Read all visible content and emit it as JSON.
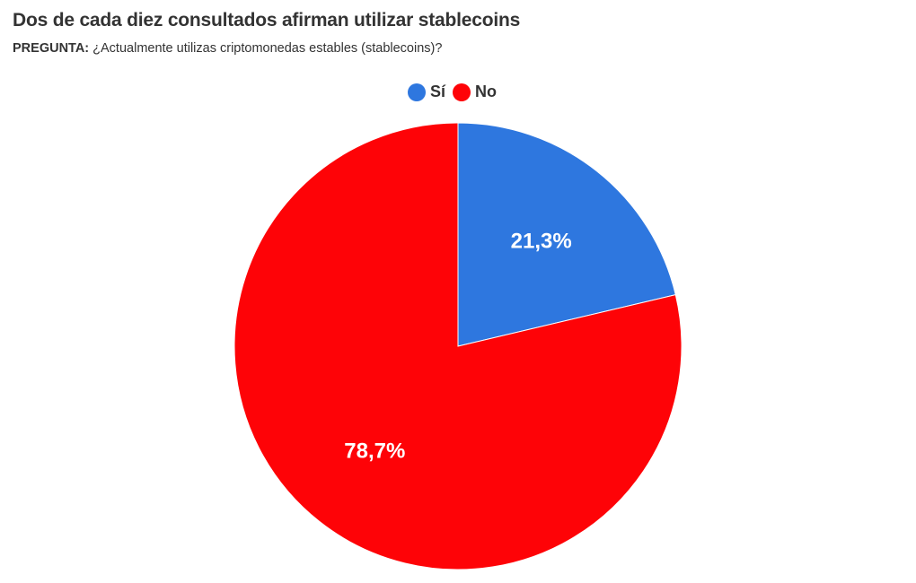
{
  "title": "Dos de cada diez consultados afirman utilizar stablecoins",
  "subtitle": {
    "prefix": "PREGUNTA:",
    "text": "¿Actualmente utilizas criptomonedas estables (stablecoins)?"
  },
  "chart_data": {
    "type": "pie",
    "slices": [
      {
        "label": "Sí",
        "value": 21.3,
        "display": "21,3%",
        "color": "#2e77df"
      },
      {
        "label": "No",
        "value": 78.7,
        "display": "78,7%",
        "color": "#fe0307"
      }
    ],
    "legend_position": "top-center",
    "start_angle_deg": 0,
    "direction": "clockwise"
  }
}
